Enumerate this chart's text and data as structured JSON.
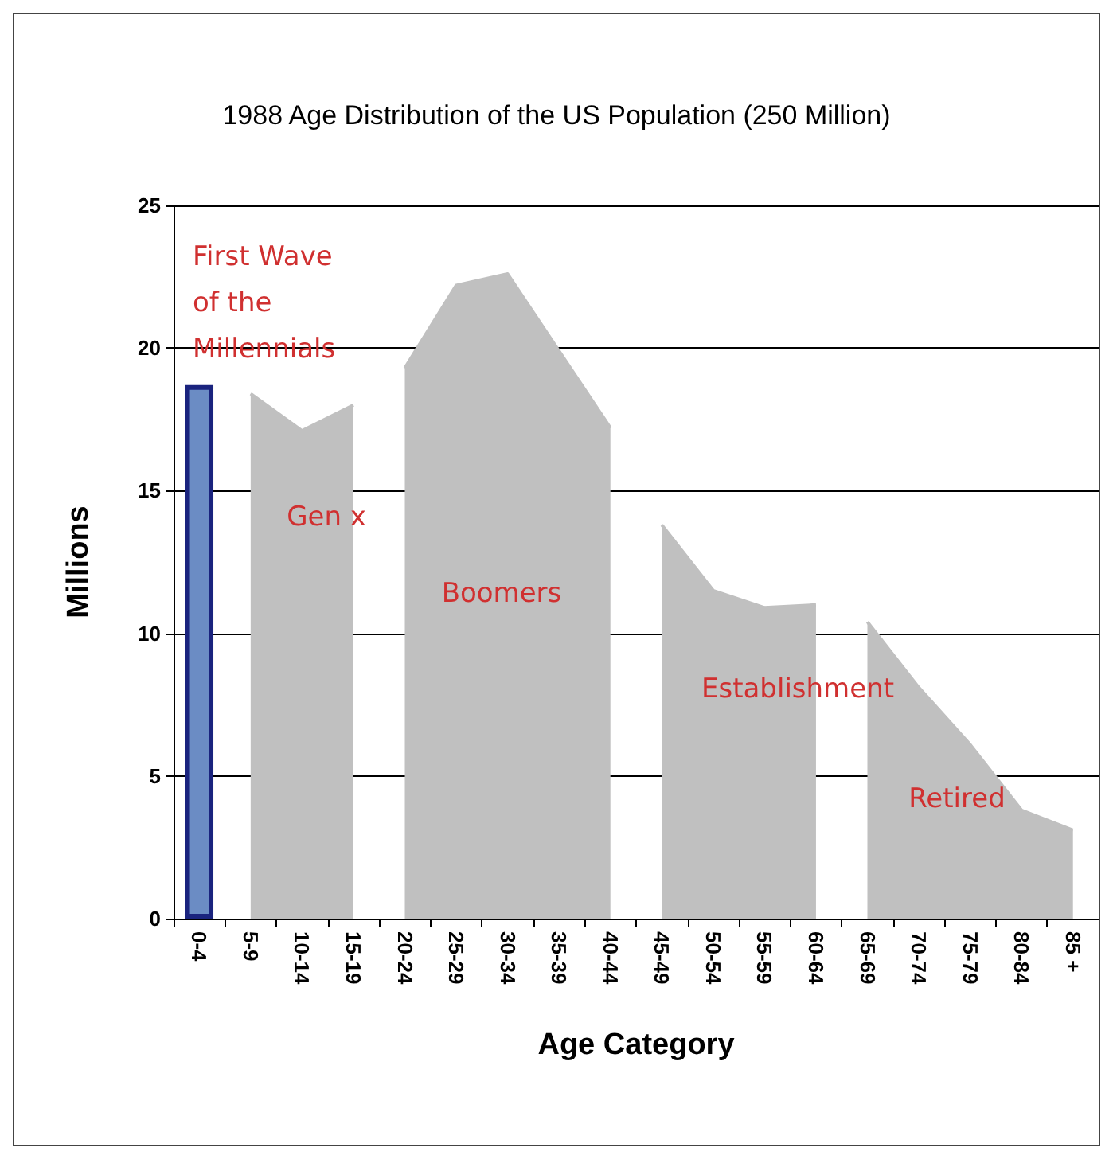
{
  "chart_data": {
    "type": "bar",
    "title": "1988 Age Distribution of the US Population (250 Million)",
    "xlabel": "Age Category",
    "ylabel": "Millions",
    "categories": [
      "0-4",
      "5-9",
      "10-14",
      "15-19",
      "20-24",
      "25-29",
      "30-34",
      "35-39",
      "40-44",
      "45-49",
      "50-54",
      "55-59",
      "60-64",
      "65-69",
      "70-74",
      "75-79",
      "80-84",
      "85 +"
    ],
    "series": [
      {
        "color": "#6b8cc4",
        "values": [
          18.7,
          null,
          null,
          null,
          null,
          null,
          null,
          null,
          null,
          null,
          null,
          null,
          null,
          null,
          null,
          null,
          null,
          null
        ]
      },
      {
        "type": "area",
        "color": "#c0c0c0",
        "values": [
          null,
          18.4,
          17.1,
          18.0,
          null,
          null,
          null,
          null,
          null,
          null,
          null,
          null,
          null,
          null,
          null,
          null,
          null,
          null
        ]
      },
      {
        "type": "area",
        "color": "#c0c0c0",
        "values": [
          null,
          null,
          null,
          null,
          19.3,
          22.2,
          22.6,
          19.9,
          17.2,
          null,
          null,
          null,
          null,
          null,
          null,
          null,
          null,
          null
        ]
      },
      {
        "type": "area",
        "color": "#c0c0c0",
        "values": [
          null,
          null,
          null,
          null,
          null,
          null,
          null,
          null,
          null,
          13.8,
          11.5,
          10.9,
          11.0,
          null,
          null,
          null,
          null,
          null
        ]
      },
      {
        "type": "area",
        "color": "#c0c0c0",
        "values": [
          null,
          null,
          null,
          null,
          null,
          null,
          null,
          null,
          null,
          null,
          null,
          null,
          null,
          10.4,
          8.1,
          6.1,
          3.8,
          3.1
        ]
      }
    ],
    "ylim": [
      0,
      25
    ],
    "yticks": [
      0,
      5,
      10,
      15,
      20,
      25
    ],
    "grid": "y",
    "annotations": [
      "First Wave of the Millennials",
      "Gen x",
      "Boomers",
      "Establishment",
      "Retired"
    ]
  }
}
